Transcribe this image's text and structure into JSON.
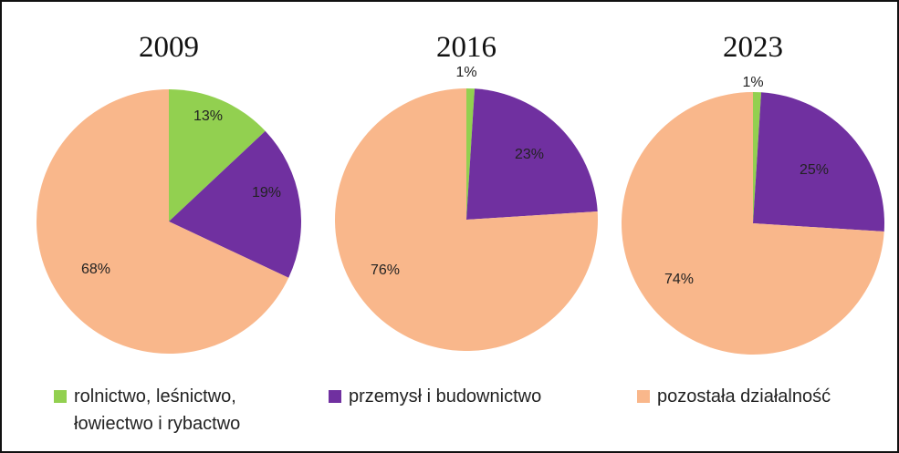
{
  "chart_data": [
    {
      "type": "pie",
      "title": "2009",
      "slices": [
        {
          "category": "rolnictwo, leśnictwo, łowiectwo i rybactwo",
          "value": 13,
          "label": "13%"
        },
        {
          "category": "przemysł i budownictwo",
          "value": 19,
          "label": "19%"
        },
        {
          "category": "pozostała działalność",
          "value": 68,
          "label": "68%"
        }
      ]
    },
    {
      "type": "pie",
      "title": "2016",
      "slices": [
        {
          "category": "rolnictwo, leśnictwo, łowiectwo i rybactwo",
          "value": 1,
          "label": "1%"
        },
        {
          "category": "przemysł i budownictwo",
          "value": 23,
          "label": "23%"
        },
        {
          "category": "pozostała działalność",
          "value": 76,
          "label": "76%"
        }
      ]
    },
    {
      "type": "pie",
      "title": "2023",
      "slices": [
        {
          "category": "rolnictwo, leśnictwo, łowiectwo i rybactwo",
          "value": 1,
          "label": "1%"
        },
        {
          "category": "przemysł i budownictwo",
          "value": 25,
          "label": "25%"
        },
        {
          "category": "pozostała działalność",
          "value": 74,
          "label": "74%"
        }
      ]
    }
  ],
  "legend": {
    "placement": "bottom",
    "items": [
      {
        "label": "rolnictwo, leśnictwo,\nłowiectwo i rybactwo",
        "color": "#92d050"
      },
      {
        "label": "przemysł i budownictwo",
        "color": "#7030a0"
      },
      {
        "label": "pozostała działalność",
        "color": "#f9b78b"
      }
    ]
  }
}
